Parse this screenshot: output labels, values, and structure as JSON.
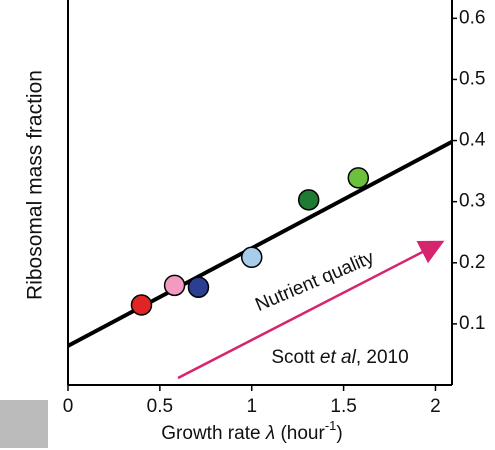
{
  "chart_data": {
    "type": "scatter",
    "x_label": [
      "Growth rate ",
      "λ",
      " (hour",
      "-1",
      ")"
    ],
    "y_label": "Ribosomal mass fraction",
    "x": [
      0.4,
      0.58,
      0.71,
      1.0,
      1.31,
      1.58
    ],
    "values": [
      0.131,
      0.163,
      0.16,
      0.209,
      0.303,
      0.339
    ],
    "colors": [
      "#e02525",
      "#f29abf",
      "#2b3f92",
      "#a9cde9",
      "#1f7a33",
      "#6cc03c"
    ],
    "fit_line": {
      "x": [
        0,
        2.09
      ],
      "values": [
        0.064,
        0.398
      ],
      "color": "#000000"
    },
    "xlim": [
      0,
      2.09
    ],
    "ylim": [
      0,
      0.63
    ],
    "xticks": [
      0,
      0.5,
      1,
      1.5,
      2
    ],
    "yticks": [
      0.1,
      0.2,
      0.3,
      0.4,
      0.5,
      0.6
    ],
    "annotations": {
      "arrow_label": "Nutrient quality",
      "citation": [
        "Scott ",
        "et al",
        ", 2010"
      ]
    }
  }
}
